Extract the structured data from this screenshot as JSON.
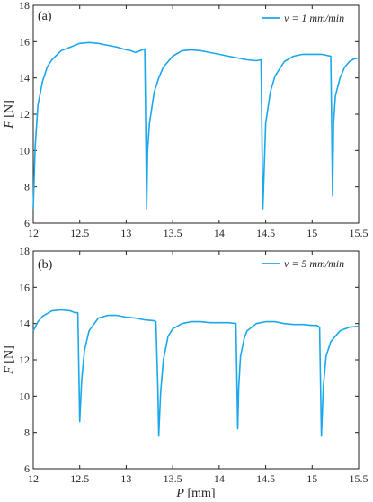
{
  "chart_data": [
    {
      "type": "line",
      "panel_label": "(a)",
      "ylabel_var": "F",
      "ylabel_unit": " [N]",
      "xlabel_var": "",
      "xlabel_unit": "",
      "xlim": [
        12,
        15.5
      ],
      "ylim": [
        6,
        18
      ],
      "xticks": [
        12,
        12.5,
        13,
        13.5,
        14,
        14.5,
        15,
        15.5
      ],
      "xtick_labels": [
        "12",
        "12.5",
        "13",
        "13.5",
        "14",
        "14.5",
        "15",
        "15.5"
      ],
      "yticks": [
        6,
        8,
        10,
        12,
        14,
        16,
        18
      ],
      "ytick_labels": [
        "6",
        "8",
        "10",
        "12",
        "14",
        "16",
        "18"
      ],
      "legend_position": "top-right",
      "color": "#1aa7ec",
      "grid": false,
      "series": [
        {
          "name": "v = 1 mm/min",
          "x": [
            12.0,
            12.02,
            12.05,
            12.1,
            12.15,
            12.2,
            12.3,
            12.4,
            12.5,
            12.6,
            12.7,
            12.8,
            12.9,
            13.0,
            13.05,
            13.1,
            13.15,
            13.2,
            13.21,
            13.22,
            13.23,
            13.25,
            13.3,
            13.35,
            13.4,
            13.5,
            13.6,
            13.7,
            13.8,
            13.9,
            14.0,
            14.1,
            14.2,
            14.3,
            14.4,
            14.45,
            14.46,
            14.47,
            14.5,
            14.55,
            14.6,
            14.7,
            14.8,
            14.9,
            15.0,
            15.1,
            15.2,
            15.21,
            15.22,
            15.23,
            15.25,
            15.3,
            15.35,
            15.4,
            15.45,
            15.5
          ],
          "y": [
            6.8,
            10.2,
            12.5,
            13.8,
            14.6,
            15.0,
            15.5,
            15.7,
            15.9,
            15.95,
            15.9,
            15.8,
            15.7,
            15.55,
            15.5,
            15.4,
            15.5,
            15.6,
            11.5,
            6.8,
            10.0,
            11.5,
            13.2,
            14.0,
            14.6,
            15.2,
            15.5,
            15.55,
            15.5,
            15.4,
            15.3,
            15.2,
            15.1,
            15.0,
            14.95,
            15.0,
            11.0,
            6.8,
            11.5,
            13.2,
            14.1,
            14.9,
            15.2,
            15.3,
            15.3,
            15.3,
            15.2,
            11.5,
            7.5,
            11.5,
            13.0,
            14.0,
            14.6,
            14.9,
            15.05,
            15.1
          ]
        }
      ]
    },
    {
      "type": "line",
      "panel_label": "(b)",
      "ylabel_var": "F",
      "ylabel_unit": " [N]",
      "xlabel_var": "P",
      "xlabel_unit": " [mm]",
      "xlim": [
        12,
        15.5
      ],
      "ylim": [
        6,
        18
      ],
      "xticks": [
        12,
        12.5,
        13,
        13.5,
        14,
        14.5,
        15,
        15.5
      ],
      "xtick_labels": [
        "12",
        "12.5",
        "13",
        "13.5",
        "14",
        "14.5",
        "15",
        "15.5"
      ],
      "yticks": [
        6,
        8,
        10,
        12,
        14,
        16,
        18
      ],
      "ytick_labels": [
        "6",
        "8",
        "10",
        "12",
        "14",
        "16",
        "18"
      ],
      "legend_position": "top-right",
      "color": "#1aa7ec",
      "grid": false,
      "series": [
        {
          "name": "v = 5 mm/min",
          "x": [
            12.0,
            12.05,
            12.1,
            12.2,
            12.3,
            12.4,
            12.45,
            12.48,
            12.5,
            12.52,
            12.55,
            12.6,
            12.7,
            12.8,
            12.9,
            13.0,
            13.1,
            13.2,
            13.3,
            13.32,
            13.34,
            13.35,
            13.37,
            13.4,
            13.45,
            13.5,
            13.6,
            13.7,
            13.8,
            13.9,
            14.0,
            14.1,
            14.18,
            14.2,
            14.21,
            14.23,
            14.27,
            14.3,
            14.4,
            14.5,
            14.6,
            14.7,
            14.8,
            14.9,
            15.0,
            15.05,
            15.08,
            15.1,
            15.12,
            15.15,
            15.2,
            15.3,
            15.4,
            15.5
          ],
          "y": [
            13.6,
            14.1,
            14.4,
            14.7,
            14.75,
            14.7,
            14.6,
            14.6,
            8.6,
            10.8,
            12.5,
            13.6,
            14.3,
            14.45,
            14.45,
            14.35,
            14.3,
            14.2,
            14.15,
            14.1,
            10.5,
            7.8,
            10.2,
            12.0,
            13.3,
            13.7,
            14.0,
            14.1,
            14.1,
            14.05,
            14.05,
            14.05,
            14.0,
            8.2,
            10.5,
            12.2,
            13.2,
            13.6,
            14.0,
            14.1,
            14.1,
            14.0,
            13.95,
            13.95,
            13.9,
            13.9,
            13.8,
            7.8,
            10.5,
            12.2,
            13.0,
            13.6,
            13.8,
            13.85
          ]
        }
      ]
    }
  ]
}
